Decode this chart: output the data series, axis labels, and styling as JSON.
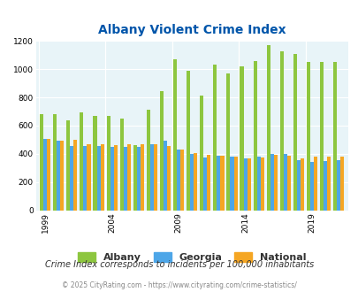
{
  "title": "Albany Violent Crime Index",
  "subtitle": "Crime Index corresponds to incidents per 100,000 inhabitants",
  "footer": "© 2025 CityRating.com - https://www.cityrating.com/crime-statistics/",
  "years": [
    1999,
    2000,
    2001,
    2002,
    2003,
    2004,
    2005,
    2006,
    2007,
    2008,
    2009,
    2010,
    2011,
    2012,
    2013,
    2014,
    2015,
    2016,
    2017,
    2018,
    2019,
    2020,
    2021
  ],
  "albany": [
    680,
    680,
    640,
    695,
    670,
    670,
    650,
    460,
    710,
    845,
    1070,
    990,
    815,
    1035,
    970,
    1020,
    1060,
    1170,
    1125,
    1110,
    1050,
    1050,
    1050
  ],
  "georgia": [
    505,
    490,
    455,
    455,
    455,
    450,
    450,
    450,
    470,
    495,
    430,
    400,
    375,
    385,
    380,
    370,
    380,
    400,
    400,
    355,
    345,
    350,
    355
  ],
  "national": [
    505,
    490,
    500,
    465,
    465,
    463,
    470,
    465,
    465,
    455,
    430,
    405,
    390,
    385,
    380,
    365,
    375,
    390,
    385,
    370,
    380,
    380,
    380
  ],
  "albany_color": "#8dc63f",
  "georgia_color": "#4da6e8",
  "national_color": "#f5a623",
  "bg_color": "#e8f4f8",
  "title_color": "#0055aa",
  "ylim": [
    0,
    1200
  ],
  "yticks": [
    0,
    200,
    400,
    600,
    800,
    1000,
    1200
  ],
  "xtick_years": [
    1999,
    2004,
    2009,
    2014,
    2019
  ]
}
